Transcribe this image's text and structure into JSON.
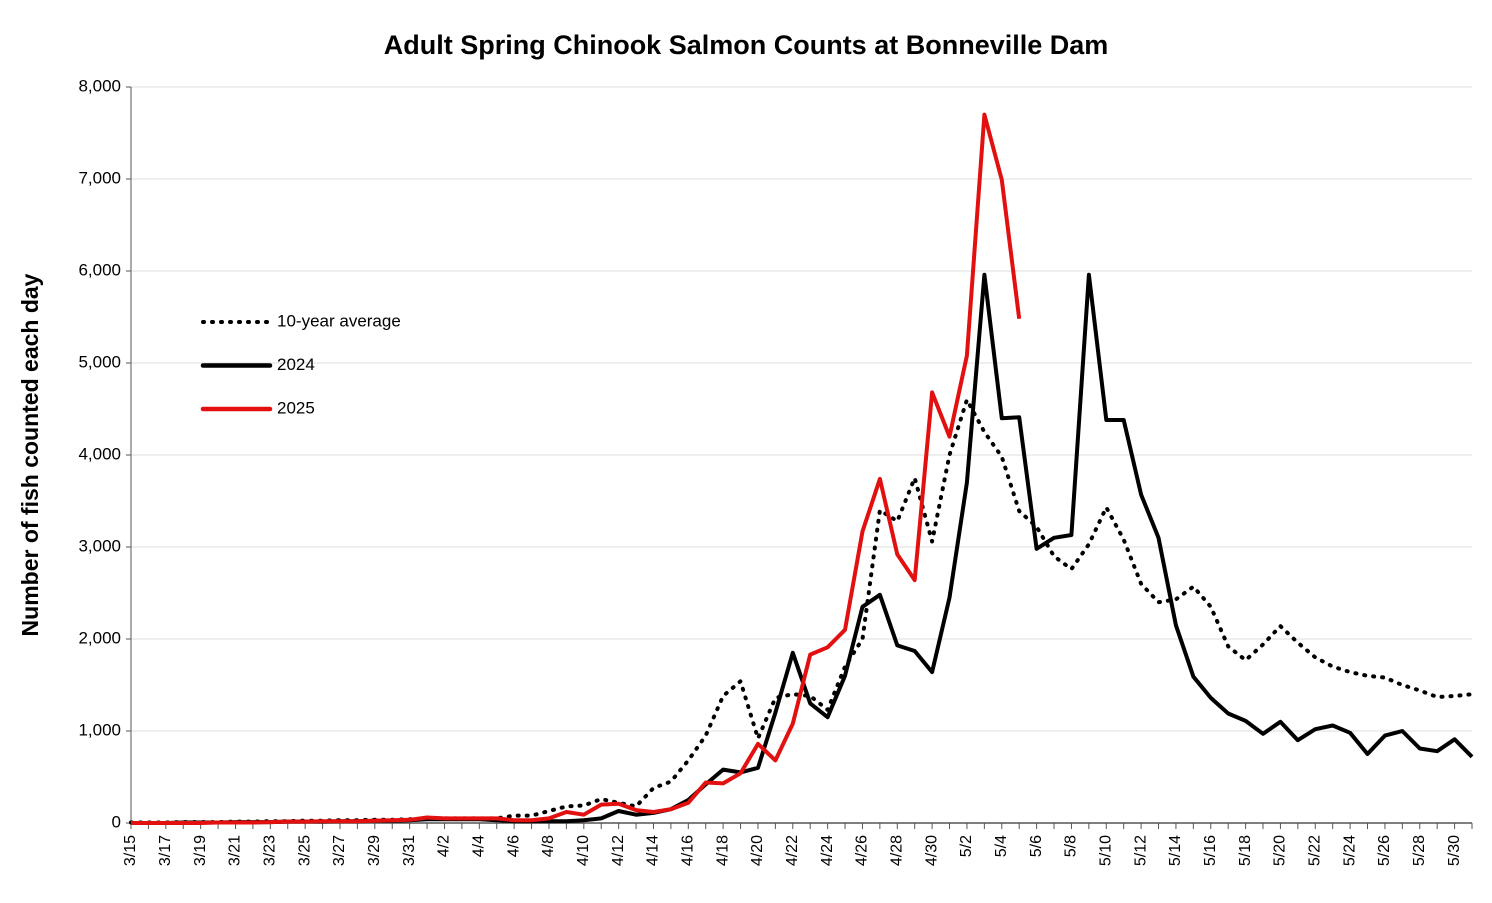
{
  "chart_data": {
    "type": "line",
    "title": "Adult Spring Chinook Salmon Counts at Bonneville Dam",
    "y_label": "Number of fish counted each day",
    "categories": [
      "3/15",
      null,
      "3/17",
      null,
      "3/19",
      null,
      "3/21",
      null,
      "3/23",
      null,
      "3/25",
      null,
      "3/27",
      null,
      "3/29",
      null,
      "3/31",
      null,
      "4/2",
      null,
      "4/4",
      null,
      "4/6",
      null,
      "4/8",
      null,
      "4/10",
      null,
      "4/12",
      null,
      "4/14",
      null,
      "4/16",
      null,
      "4/18",
      null,
      "4/20",
      null,
      "4/22",
      null,
      "4/24",
      null,
      "4/26",
      null,
      "4/28",
      null,
      "4/30",
      null,
      "5/2",
      null,
      "5/4",
      null,
      "5/6",
      null,
      "5/8",
      null,
      "5/10",
      null,
      "5/12",
      null,
      "5/14",
      null,
      "5/16",
      null,
      "5/18",
      null,
      "5/20",
      null,
      "5/22",
      null,
      "5/24",
      null,
      "5/26",
      null,
      "5/28",
      null,
      "5/30",
      null
    ],
    "series": [
      {
        "name": "10-year average",
        "color": "#000000",
        "style": "dotted",
        "values": [
          5,
          5,
          5,
          10,
          10,
          10,
          15,
          15,
          20,
          20,
          25,
          25,
          30,
          30,
          35,
          35,
          40,
          50,
          50,
          50,
          50,
          50,
          80,
          80,
          130,
          180,
          190,
          260,
          220,
          180,
          380,
          450,
          680,
          950,
          1380,
          1540,
          920,
          1360,
          1400,
          1380,
          1230,
          1700,
          2000,
          3400,
          3280,
          3750,
          3060,
          4000,
          4600,
          4250,
          3980,
          3390,
          3220,
          2900,
          2760,
          3030,
          3430,
          3080,
          2600,
          2400,
          2430,
          2570,
          2350,
          1920,
          1770,
          1940,
          2140,
          1960,
          1800,
          1700,
          1640,
          1600,
          1580,
          1500,
          1440,
          1370,
          1380,
          1400
        ]
      },
      {
        "name": "2024",
        "color": "#000000",
        "style": "solid",
        "values": [
          0,
          0,
          0,
          5,
          5,
          5,
          10,
          10,
          10,
          15,
          15,
          15,
          20,
          20,
          25,
          25,
          30,
          40,
          40,
          40,
          40,
          30,
          20,
          20,
          20,
          20,
          30,
          50,
          130,
          90,
          110,
          150,
          250,
          420,
          580,
          550,
          600,
          1200,
          1850,
          1300,
          1150,
          1600,
          2350,
          2480,
          1930,
          1870,
          1640,
          2450,
          3700,
          5960,
          4400,
          4410,
          2980,
          3100,
          3130,
          5960,
          4380,
          4380,
          3570,
          3100,
          2150,
          1590,
          1360,
          1190,
          1110,
          970,
          1100,
          900,
          1020,
          1060,
          980,
          750,
          950,
          1000,
          810,
          780,
          910,
          720
        ]
      },
      {
        "name": "2025",
        "color": "#e31010",
        "style": "solid",
        "values": [
          0,
          0,
          0,
          0,
          0,
          5,
          5,
          5,
          10,
          15,
          15,
          20,
          20,
          20,
          25,
          30,
          35,
          60,
          50,
          50,
          50,
          50,
          30,
          30,
          50,
          120,
          90,
          200,
          210,
          140,
          120,
          150,
          220,
          440,
          430,
          540,
          860,
          680,
          1080,
          1830,
          1910,
          2100,
          3170,
          3740,
          2920,
          2640,
          4680,
          4200,
          5080,
          7700,
          6990,
          5480,
          null,
          null,
          null,
          null,
          null,
          null,
          null,
          null,
          null,
          null,
          null,
          null,
          null,
          null,
          null,
          null,
          null,
          null,
          null,
          null,
          null,
          null,
          null,
          null,
          null,
          null
        ]
      }
    ],
    "ylim": [
      0,
      8000
    ],
    "yticks": [
      0,
      {
        "value": 1000,
        "label": "1,000"
      },
      {
        "value": 2000,
        "label": "2,000"
      },
      {
        "value": 3000,
        "label": "3,000"
      },
      {
        "value": 4000,
        "label": "4,000"
      },
      {
        "value": 5000,
        "label": "5,000"
      },
      {
        "value": 6000,
        "label": "6,000"
      },
      {
        "value": 7000,
        "label": "7,000"
      },
      {
        "value": 8000,
        "label": "8,000"
      }
    ],
    "grid": true,
    "legend": "left"
  }
}
